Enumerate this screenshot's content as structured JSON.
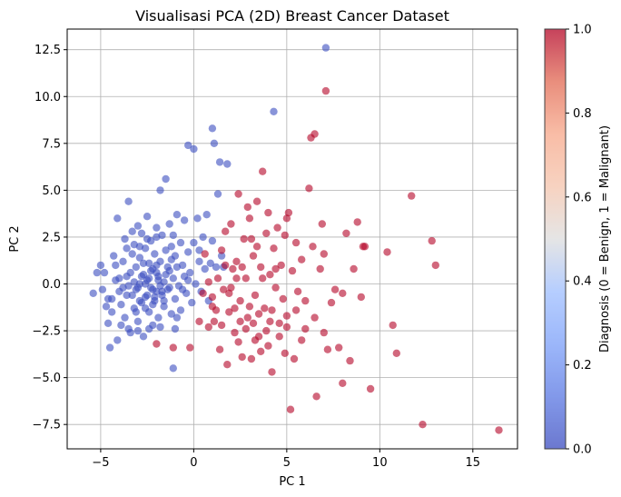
{
  "chart_data": {
    "type": "scatter",
    "title": "Visualisasi PCA (2D) Breast Cancer Dataset",
    "xlabel": "PC 1",
    "ylabel": "PC 2",
    "xlim": [
      -6.8,
      17.4
    ],
    "ylim": [
      -8.8,
      13.6
    ],
    "xticks": [
      -5,
      0,
      5,
      10,
      15
    ],
    "xtick_labels": [
      "−5",
      "0",
      "5",
      "10",
      "15"
    ],
    "yticks": [
      -7.5,
      -5.0,
      -2.5,
      0.0,
      2.5,
      5.0,
      7.5,
      10.0,
      12.5
    ],
    "ytick_labels": [
      "−7.5",
      "−5.0",
      "−2.5",
      "0.0",
      "2.5",
      "5.0",
      "7.5",
      "10.0",
      "12.5"
    ],
    "grid": true,
    "point_alpha": 0.6,
    "colorbar": {
      "label": "Diagnosis (0 = Benign, 1 = Malignant)",
      "range": [
        0,
        1
      ],
      "ticks": [
        0.0,
        0.2,
        0.4,
        0.6,
        0.8,
        1.0
      ],
      "tick_labels": [
        "0.0",
        "0.2",
        "0.4",
        "0.6",
        "0.8",
        "1.0"
      ],
      "colormap": "coolwarm",
      "low_color": "#3b4cc0",
      "high_color": "#b40426"
    },
    "series": [
      {
        "label_value": 0,
        "color": "#3b4cc0",
        "points": [
          [
            -5.4,
            -0.5
          ],
          [
            -5.2,
            0.6
          ],
          [
            -5.0,
            1.0
          ],
          [
            -4.8,
            0.6
          ],
          [
            -4.6,
            -0.8
          ],
          [
            -4.6,
            -2.1
          ],
          [
            -4.5,
            -3.4
          ],
          [
            -4.4,
            -1.5
          ],
          [
            -4.3,
            1.5
          ],
          [
            -4.2,
            0.2
          ],
          [
            -4.1,
            -3.0
          ],
          [
            -4.1,
            3.5
          ],
          [
            -4.0,
            -0.4
          ],
          [
            -3.9,
            -1.1
          ],
          [
            -3.8,
            1.2
          ],
          [
            -3.7,
            2.4
          ],
          [
            -3.7,
            -1.8
          ],
          [
            -3.6,
            0.4
          ],
          [
            -3.5,
            4.4
          ],
          [
            -3.5,
            -0.1
          ],
          [
            -3.4,
            -2.6
          ],
          [
            -3.3,
            1.6
          ],
          [
            -3.3,
            -0.6
          ],
          [
            -3.2,
            2.1
          ],
          [
            -3.2,
            -1.3
          ],
          [
            -3.1,
            0.9
          ],
          [
            -3.1,
            -0.3
          ],
          [
            -3.0,
            3.1
          ],
          [
            -3.0,
            -2.0
          ],
          [
            -2.9,
            1.4
          ],
          [
            -2.9,
            0.0
          ],
          [
            -2.8,
            -1.0
          ],
          [
            -2.8,
            2.7
          ],
          [
            -2.7,
            0.5
          ],
          [
            -2.7,
            -2.8
          ],
          [
            -2.6,
            1.9
          ],
          [
            -2.6,
            -0.7
          ],
          [
            -2.5,
            3.6
          ],
          [
            -2.5,
            0.2
          ],
          [
            -2.4,
            -1.5
          ],
          [
            -2.4,
            1.1
          ],
          [
            -2.3,
            -0.2
          ],
          [
            -2.3,
            2.3
          ],
          [
            -2.2,
            -2.2
          ],
          [
            -2.2,
            0.8
          ],
          [
            -2.1,
            -0.9
          ],
          [
            -2.1,
            1.6
          ],
          [
            -2.0,
            3.0
          ],
          [
            -2.0,
            -0.4
          ],
          [
            -1.9,
            0.4
          ],
          [
            -1.9,
            -1.8
          ],
          [
            -1.8,
            5.0
          ],
          [
            -1.8,
            1.2
          ],
          [
            -1.7,
            -0.6
          ],
          [
            -1.7,
            2.6
          ],
          [
            -1.6,
            0.1
          ],
          [
            -1.6,
            -1.2
          ],
          [
            -1.5,
            1.8
          ],
          [
            -1.5,
            5.6
          ],
          [
            -1.4,
            -0.3
          ],
          [
            -1.3,
            3.2
          ],
          [
            -1.3,
            0.7
          ],
          [
            -1.2,
            -1.6
          ],
          [
            -1.2,
            2.0
          ],
          [
            -1.1,
            -4.5
          ],
          [
            -1.1,
            0.3
          ],
          [
            -1.0,
            1.5
          ],
          [
            -1.0,
            -0.8
          ],
          [
            -0.9,
            3.7
          ],
          [
            -0.9,
            0.9
          ],
          [
            -0.8,
            -0.1
          ],
          [
            -0.7,
            2.2
          ],
          [
            -0.7,
            -1.4
          ],
          [
            -0.6,
            1.0
          ],
          [
            -0.5,
            0.4
          ],
          [
            -0.5,
            3.4
          ],
          [
            -0.4,
            -0.5
          ],
          [
            -0.3,
            1.7
          ],
          [
            -0.3,
            7.4
          ],
          [
            -0.2,
            0.6
          ],
          [
            -0.1,
            -1.0
          ],
          [
            0.0,
            2.2
          ],
          [
            0.0,
            7.2
          ],
          [
            0.1,
            0.0
          ],
          [
            0.2,
            3.5
          ],
          [
            0.3,
            1.2
          ],
          [
            0.4,
            -0.4
          ],
          [
            0.5,
            2.5
          ],
          [
            0.6,
            0.8
          ],
          [
            0.7,
            3.7
          ],
          [
            0.8,
            -0.9
          ],
          [
            0.9,
            1.1
          ],
          [
            1.0,
            8.3
          ],
          [
            1.0,
            2.3
          ],
          [
            1.1,
            7.5
          ],
          [
            1.2,
            0.9
          ],
          [
            1.3,
            4.8
          ],
          [
            1.4,
            6.5
          ],
          [
            1.5,
            1.5
          ],
          [
            1.6,
            0.9
          ],
          [
            1.8,
            6.4
          ],
          [
            4.3,
            9.2
          ],
          [
            7.1,
            12.6
          ],
          [
            -2.6,
            0.0
          ],
          [
            -2.4,
            0.3
          ],
          [
            -2.2,
            -0.3
          ],
          [
            -2.0,
            0.6
          ],
          [
            -1.8,
            -0.1
          ],
          [
            -2.8,
            0.4
          ],
          [
            -3.0,
            -0.2
          ],
          [
            -2.5,
            -0.6
          ],
          [
            -2.3,
            0.7
          ],
          [
            -1.9,
            0.2
          ],
          [
            -1.7,
            -0.4
          ],
          [
            -2.1,
            -0.7
          ],
          [
            -3.2,
            0.1
          ],
          [
            -3.4,
            0.6
          ],
          [
            -2.7,
            1.1
          ],
          [
            -2.0,
            1.0
          ],
          [
            -1.5,
            0.5
          ],
          [
            -1.3,
            -0.2
          ],
          [
            -1.4,
            0.9
          ],
          [
            -2.9,
            -0.9
          ],
          [
            -3.1,
            -1.5
          ],
          [
            -2.6,
            -1.3
          ],
          [
            -2.2,
            -1.1
          ],
          [
            -1.6,
            -0.9
          ],
          [
            -3.6,
            -0.6
          ],
          [
            -3.8,
            -0.2
          ],
          [
            -4.0,
            0.3
          ],
          [
            -3.9,
            -2.2
          ],
          [
            -3.5,
            -2.4
          ],
          [
            -3.0,
            -2.5
          ],
          [
            -2.4,
            -2.4
          ],
          [
            -1.8,
            -2.3
          ],
          [
            -4.4,
            -0.8
          ],
          [
            -4.7,
            -1.2
          ],
          [
            -4.9,
            -0.3
          ],
          [
            -2.9,
            2.0
          ],
          [
            -2.5,
            2.4
          ],
          [
            -2.0,
            2.5
          ],
          [
            -3.6,
            1.9
          ],
          [
            -1.2,
            1.3
          ],
          [
            -0.9,
            -1.8
          ],
          [
            -0.6,
            -0.3
          ],
          [
            -1.1,
            2.6
          ],
          [
            -0.3,
            0.2
          ],
          [
            0.3,
            1.8
          ],
          [
            -1.0,
            -2.4
          ],
          [
            -4.2,
            1.0
          ],
          [
            -3.3,
            2.8
          ]
        ]
      },
      {
        "label_value": 1,
        "color": "#b40426",
        "points": [
          [
            -2.0,
            -3.2
          ],
          [
            -1.1,
            -3.4
          ],
          [
            -0.2,
            -3.4
          ],
          [
            0.3,
            -2.0
          ],
          [
            0.5,
            -0.5
          ],
          [
            0.6,
            1.6
          ],
          [
            0.8,
            -2.3
          ],
          [
            1.0,
            -1.2
          ],
          [
            1.1,
            -2.0
          ],
          [
            1.3,
            0.3
          ],
          [
            1.4,
            -3.5
          ],
          [
            1.5,
            1.8
          ],
          [
            1.6,
            -0.3
          ],
          [
            1.7,
            2.8
          ],
          [
            1.8,
            -4.3
          ],
          [
            1.9,
            -1.5
          ],
          [
            2.0,
            3.2
          ],
          [
            2.1,
            0.8
          ],
          [
            2.2,
            -2.6
          ],
          [
            2.3,
            1.2
          ],
          [
            2.4,
            4.8
          ],
          [
            2.5,
            -0.9
          ],
          [
            2.6,
            -3.9
          ],
          [
            2.7,
            2.4
          ],
          [
            2.8,
            0.3
          ],
          [
            2.9,
            -1.8
          ],
          [
            3.0,
            3.5
          ],
          [
            3.1,
            -4.0
          ],
          [
            3.2,
            1.5
          ],
          [
            3.3,
            -0.6
          ],
          [
            3.4,
            2.0
          ],
          [
            3.5,
            -2.8
          ],
          [
            3.6,
            0.9
          ],
          [
            3.7,
            6.0
          ],
          [
            3.8,
            -1.3
          ],
          [
            3.9,
            2.7
          ],
          [
            4.0,
            -3.3
          ],
          [
            4.1,
            0.5
          ],
          [
            4.2,
            -4.7
          ],
          [
            4.3,
            1.9
          ],
          [
            4.4,
            -0.2
          ],
          [
            4.5,
            3.0
          ],
          [
            4.6,
            -2.1
          ],
          [
            4.7,
            1.0
          ],
          [
            4.8,
            -0.8
          ],
          [
            4.9,
            2.6
          ],
          [
            5.0,
            -1.7
          ],
          [
            5.1,
            3.8
          ],
          [
            5.2,
            -6.7
          ],
          [
            5.3,
            0.7
          ],
          [
            5.4,
            -4.0
          ],
          [
            5.5,
            2.2
          ],
          [
            5.6,
            -0.4
          ],
          [
            5.8,
            1.3
          ],
          [
            6.0,
            -2.4
          ],
          [
            6.2,
            5.1
          ],
          [
            6.3,
            7.8
          ],
          [
            6.5,
            8.0
          ],
          [
            6.6,
            -6.0
          ],
          [
            6.8,
            0.8
          ],
          [
            7.0,
            1.6
          ],
          [
            7.1,
            10.3
          ],
          [
            7.2,
            -3.5
          ],
          [
            7.4,
            -1.0
          ],
          [
            7.6,
            -0.3
          ],
          [
            7.8,
            -3.4
          ],
          [
            8.0,
            -5.3
          ],
          [
            8.2,
            2.7
          ],
          [
            8.4,
            -4.1
          ],
          [
            8.6,
            0.8
          ],
          [
            8.8,
            3.3
          ],
          [
            9.0,
            -0.7
          ],
          [
            9.2,
            2.0
          ],
          [
            9.5,
            -5.6
          ],
          [
            10.4,
            1.7
          ],
          [
            10.7,
            -2.2
          ],
          [
            10.9,
            -3.7
          ],
          [
            11.7,
            4.7
          ],
          [
            12.3,
            -7.5
          ],
          [
            12.8,
            2.3
          ],
          [
            13.0,
            1.0
          ],
          [
            16.4,
            -7.8
          ],
          [
            2.5,
            -2.0
          ],
          [
            2.8,
            -2.4
          ],
          [
            3.2,
            -2.1
          ],
          [
            3.5,
            -1.6
          ],
          [
            3.9,
            -2.5
          ],
          [
            4.2,
            -1.4
          ],
          [
            4.6,
            -2.8
          ],
          [
            5.0,
            -2.3
          ],
          [
            3.0,
            -1.2
          ],
          [
            3.3,
            -3.0
          ],
          [
            2.2,
            -1.3
          ],
          [
            1.9,
            -0.5
          ],
          [
            2.6,
            0.9
          ],
          [
            3.7,
            0.3
          ],
          [
            4.4,
            0.8
          ],
          [
            5.5,
            -1.4
          ],
          [
            6.0,
            -0.9
          ],
          [
            6.5,
            -1.8
          ],
          [
            5.8,
            -3.0
          ],
          [
            4.9,
            -3.7
          ],
          [
            4.1,
            -2.0
          ],
          [
            3.6,
            -3.6
          ],
          [
            2.4,
            -3.1
          ],
          [
            1.5,
            -2.2
          ],
          [
            6.4,
            2.0
          ],
          [
            7.0,
            -2.6
          ],
          [
            2.9,
            4.1
          ],
          [
            3.4,
            4.4
          ],
          [
            5.0,
            3.5
          ],
          [
            6.9,
            3.2
          ],
          [
            8.0,
            -0.5
          ],
          [
            9.1,
            2.0
          ],
          [
            2.0,
            -0.2
          ],
          [
            2.3,
            0.3
          ],
          [
            1.7,
            1.0
          ],
          [
            1.2,
            -1.4
          ],
          [
            1.0,
            -0.7
          ],
          [
            0.8,
            0.1
          ],
          [
            3.1,
            2.4
          ],
          [
            4.0,
            3.8
          ]
        ]
      }
    ]
  }
}
